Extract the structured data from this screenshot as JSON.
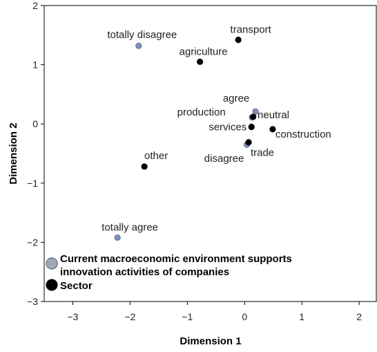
{
  "chart_data": {
    "type": "scatter",
    "xlabel": "Dimension 1",
    "ylabel": "Dimension 2",
    "xlim": [
      -3.5,
      2.3
    ],
    "ylim": [
      -3,
      2
    ],
    "xticks": [
      -3,
      -2,
      -1,
      0,
      1,
      2
    ],
    "yticks": [
      -3,
      -2,
      -1,
      0,
      1,
      2
    ],
    "xtick_labels": [
      "−3",
      "−2",
      "−1",
      "0",
      "1",
      "2"
    ],
    "ytick_labels": [
      "−3",
      "−2",
      "−1",
      "0",
      "1",
      "2"
    ],
    "grid": false,
    "legend_position": "bottom-left",
    "series": [
      {
        "name": "Current macroeconomic environment supports innovation activities of companies",
        "color": "#7f8fb5",
        "points": [
          {
            "label": "totally disagree",
            "x": -1.85,
            "y": 1.32
          },
          {
            "label": "agree",
            "x": 0.19,
            "y": 0.21
          },
          {
            "label": "neutral",
            "x": 0.13,
            "y": 0.11
          },
          {
            "label": "disagree",
            "x": 0.04,
            "y": -0.35
          },
          {
            "label": "totally agree",
            "x": -2.22,
            "y": -1.92
          }
        ]
      },
      {
        "name": "Sector",
        "color": "#000000",
        "points": [
          {
            "label": "transport",
            "x": -0.11,
            "y": 1.42
          },
          {
            "label": "agriculture",
            "x": -0.78,
            "y": 1.05
          },
          {
            "label": "production",
            "x": 0.15,
            "y": 0.12
          },
          {
            "label": "services",
            "x": 0.12,
            "y": -0.05
          },
          {
            "label": "construction",
            "x": 0.49,
            "y": -0.09
          },
          {
            "label": "trade",
            "x": 0.07,
            "y": -0.31
          },
          {
            "label": "other",
            "x": -1.75,
            "y": -0.72
          }
        ]
      }
    ],
    "legend": [
      {
        "label_lines": [
          "Current macroeconomic environment supports",
          "innovation activities of companies"
        ],
        "color": "#a2a9b6"
      },
      {
        "label_lines": [
          "Sector"
        ],
        "color": "#000000"
      }
    ]
  }
}
